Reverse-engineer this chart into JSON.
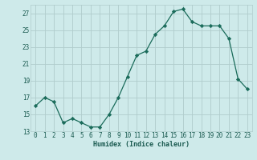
{
  "x": [
    0,
    1,
    2,
    3,
    4,
    5,
    6,
    7,
    8,
    9,
    10,
    11,
    12,
    13,
    14,
    15,
    16,
    17,
    18,
    19,
    20,
    21,
    22,
    23
  ],
  "y": [
    16.0,
    17.0,
    16.5,
    14.0,
    14.5,
    14.0,
    13.5,
    13.5,
    15.0,
    17.0,
    19.5,
    22.0,
    22.5,
    24.5,
    25.5,
    27.2,
    27.5,
    26.0,
    25.5,
    25.5,
    25.5,
    24.0,
    19.2,
    18.0
  ],
  "xlabel": "Humidex (Indice chaleur)",
  "ylim": [
    13,
    28
  ],
  "xlim": [
    -0.5,
    23.5
  ],
  "yticks": [
    13,
    15,
    17,
    19,
    21,
    23,
    25,
    27
  ],
  "xticks": [
    0,
    1,
    2,
    3,
    4,
    5,
    6,
    7,
    8,
    9,
    10,
    11,
    12,
    13,
    14,
    15,
    16,
    17,
    18,
    19,
    20,
    21,
    22,
    23
  ],
  "line_color": "#1a6b5a",
  "marker": "D",
  "marker_size": 2.2,
  "marker_linewidth": 0.5,
  "line_width": 0.9,
  "bg_color": "#ceeaea",
  "grid_color": "#b0cccc",
  "font_color": "#1a5a50",
  "tick_fontsize": 5.5,
  "xlabel_fontsize": 6.0
}
